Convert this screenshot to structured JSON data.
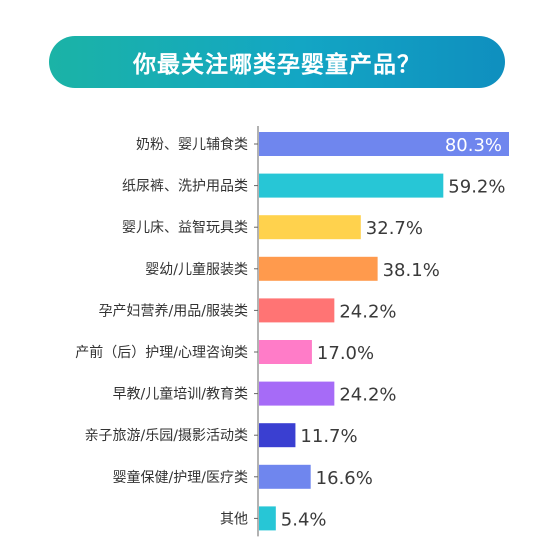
{
  "title": "你最关注哪类孕婴童产品？",
  "chart_data": {
    "type": "bar",
    "orientation": "horizontal",
    "title": "你最关注哪类孕婴童产品？",
    "categories": [
      "奶粉、婴儿辅食类",
      "纸尿裤、洗护用品类",
      "婴儿床、益智玩具类",
      "婴幼/儿童服装类",
      "孕产妇营养/用品/服装类",
      "产前（后）护理/心理咨询类",
      "早教/儿童培训/教育类",
      "亲子旅游/乐园/摄影活动类",
      "婴童保健/护理/医疗类",
      "其他"
    ],
    "values": [
      80.3,
      59.2,
      32.7,
      38.1,
      24.2,
      17.0,
      24.2,
      11.7,
      16.6,
      5.4
    ],
    "value_labels": [
      "80.3%",
      "59.2%",
      "32.7%",
      "38.1%",
      "24.2%",
      "17.0%",
      "24.2%",
      "11.7%",
      "16.6%",
      "5.4%"
    ],
    "colors": [
      "#6f86ee",
      "#27c6d6",
      "#ffd24d",
      "#ff9a4d",
      "#ff7474",
      "#ff7cc8",
      "#a66bf7",
      "#3a3fd1",
      "#6f86ee",
      "#27c6d6"
    ],
    "value_label_inside_first": true,
    "xlim": [
      0,
      80.3
    ],
    "grid": false,
    "legend": "none"
  }
}
